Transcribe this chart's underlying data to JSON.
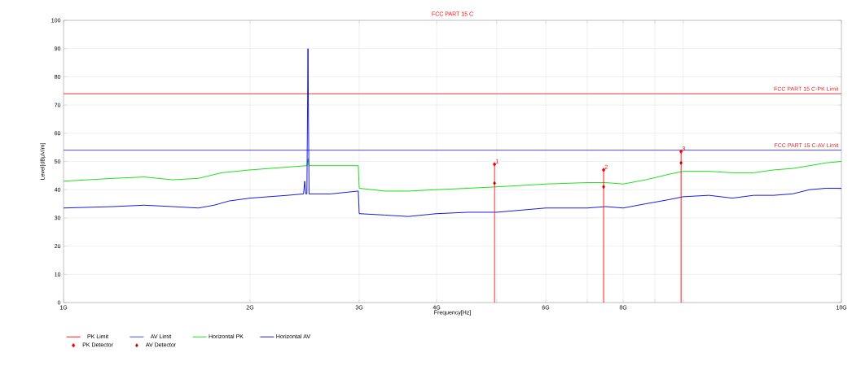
{
  "chart_data": {
    "type": "line",
    "title": "FCC PART 15 C",
    "xlabel": "Frequency[Hz]",
    "ylabel": "Level[dBμV/m]",
    "log": "x",
    "grid": true,
    "legend": "bottom",
    "xlim": [
      1,
      18
    ],
    "ylim": [
      0,
      100
    ],
    "xticks": [
      {
        "value": 1,
        "label": "1G"
      },
      {
        "value": 2,
        "label": "2G"
      },
      {
        "value": 3,
        "label": "3G"
      },
      {
        "value": 4,
        "label": "4G"
      },
      {
        "value": 5,
        "label": null
      },
      {
        "value": 6,
        "label": "6G"
      },
      {
        "value": 7,
        "label": null
      },
      {
        "value": 8,
        "label": "8G"
      },
      {
        "value": 9,
        "label": null
      },
      {
        "value": 10,
        "label": null
      },
      {
        "value": 18,
        "label": "18G"
      }
    ],
    "yticks": [
      0,
      10,
      20,
      30,
      40,
      50,
      60,
      70,
      80,
      90,
      100
    ],
    "series": [
      {
        "name": "PK Limit",
        "color": "#ff0000",
        "x": [
          1,
          18
        ],
        "values": [
          74,
          74
        ]
      },
      {
        "name": "AV Limit",
        "color": "#3333ff",
        "x": [
          1,
          18
        ],
        "values": [
          54,
          54
        ]
      },
      {
        "name": "Horizontal PK",
        "color": "#00e000",
        "x": [
          1,
          1.2,
          1.35,
          1.5,
          1.65,
          1.8,
          2,
          2.3,
          2.47,
          2.48,
          2.49,
          2.7,
          2.99,
          3,
          3.3,
          3.6,
          4,
          4.5,
          5,
          5.5,
          6,
          7,
          7.5,
          8,
          8.7,
          9.5,
          10,
          11,
          12,
          13,
          14,
          15,
          16,
          17,
          18
        ],
        "values": [
          43,
          44,
          44.5,
          43.5,
          44,
          46,
          47,
          48,
          48.5,
          51,
          48.5,
          48.5,
          48.5,
          40.5,
          39.5,
          39.5,
          40,
          40.5,
          41,
          41.5,
          42,
          42.5,
          42.5,
          42,
          43.5,
          45.5,
          46.5,
          46.5,
          46,
          46,
          47,
          47.5,
          48.5,
          49.5,
          50
        ]
      },
      {
        "name": "Horizontal AV",
        "color": "#0000e0",
        "x": [
          1,
          1.2,
          1.35,
          1.5,
          1.65,
          1.75,
          1.85,
          2,
          2.3,
          2.44,
          2.45,
          2.46,
          2.47,
          2.48,
          2.49,
          2.7,
          2.99,
          3,
          3.3,
          3.6,
          4,
          4.5,
          5,
          6,
          7,
          7.5,
          8,
          8.7,
          9.5,
          10,
          11,
          12,
          13,
          14,
          15,
          16,
          17,
          18
        ],
        "values": [
          33.5,
          34,
          34.5,
          34,
          33.5,
          34.5,
          36,
          37,
          38,
          38.5,
          43,
          38.5,
          38.5,
          90,
          38.5,
          38.5,
          39.5,
          31.5,
          31,
          30.5,
          31.5,
          32,
          32,
          33.5,
          33.5,
          34,
          33.5,
          35,
          36.5,
          37.5,
          38,
          37,
          38,
          38,
          38.5,
          40,
          40.5,
          40.5
        ]
      },
      {
        "name": "PK Detector",
        "type": "lollipop",
        "color": "#ff0000",
        "marker": "diamond",
        "x": [
          4.96,
          7.44,
          9.92
        ],
        "values": [
          49,
          47,
          53.5
        ]
      },
      {
        "name": "AV Detector",
        "type": "scatter",
        "color": "#c00000",
        "marker": "diamond",
        "x": [
          4.96,
          7.44,
          9.92
        ],
        "values": [
          42.3,
          41,
          49.5
        ]
      }
    ],
    "annotations": [
      {
        "text": "FCC PART 15 C-PK Limit",
        "x": 18,
        "y": 74
      },
      {
        "text": "FCC PART 15 C-AV Limit",
        "x": 18,
        "y": 54
      },
      {
        "text": "1",
        "x": 4.96,
        "y": 49
      },
      {
        "text": "2",
        "x": 7.44,
        "y": 47
      },
      {
        "text": "3",
        "x": 9.92,
        "y": 53.5
      }
    ]
  }
}
